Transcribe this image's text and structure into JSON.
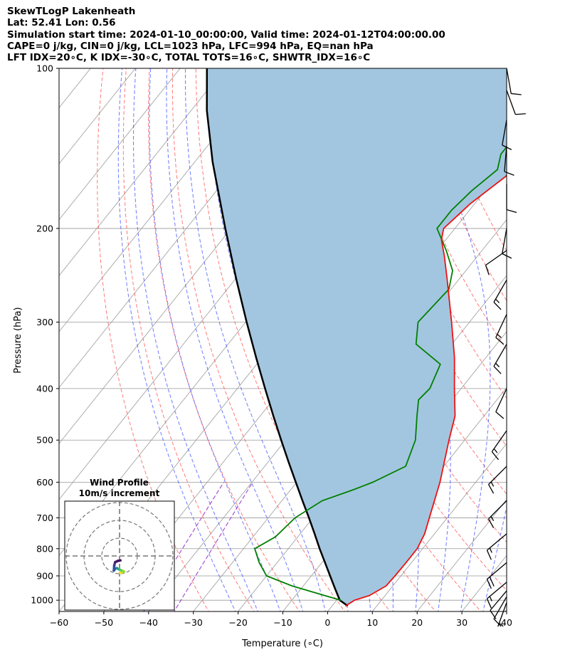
{
  "header": {
    "line1": "SkewTLogP Lakenheath",
    "line2": "Lat: 52.41   Lon: 0.56",
    "line3": "Simulation start time: 2024-01-10_00:00:00, Valid time: 2024-01-12T04:00:00.00",
    "line4": "CAPE=0 j/kg, CIN=0 j/kg, LCL=1023 hPa, LFC=994 hPa, EQ=nan hPa",
    "line5": "LFT IDX=20∘C, K IDX=-30∘C, TOTAL TOTS=16∘C, SHWTR_IDX=16∘C"
  },
  "axes": {
    "xlabel": "Temperature (∘C)",
    "ylabel": "Pressure (hPa)"
  },
  "hodograph": {
    "title": "Wind Profile",
    "subtitle": "10m/s increment"
  },
  "chart_data": {
    "type": "skewt-logp",
    "xlim": [
      -60,
      40
    ],
    "ylim_hpa": [
      1050,
      100
    ],
    "log_pressure_axis": true,
    "grid": true,
    "x_ticks": [
      -60,
      -50,
      -40,
      -30,
      -20,
      -10,
      0,
      10,
      20,
      30,
      40
    ],
    "y_ticks": [
      100,
      200,
      300,
      400,
      500,
      600,
      700,
      800,
      900,
      1000
    ],
    "colors": {
      "temperature": "#ee1111",
      "dewpoint": "#008000",
      "parcel": "#000000",
      "shading": "#a3c6e0",
      "dry_adiabat": "#ff4040",
      "moist_adiabat": "#3040ff",
      "mixing_ratio": "#9933cc",
      "isotherm": "#999999"
    },
    "temperature_profile": [
      {
        "p": 1025,
        "t": 3.0
      },
      {
        "p": 1000,
        "t": 4.0
      },
      {
        "p": 980,
        "t": 6.5
      },
      {
        "p": 940,
        "t": 8.5
      },
      {
        "p": 900,
        "t": 8.7
      },
      {
        "p": 850,
        "t": 8.8
      },
      {
        "p": 800,
        "t": 8.8
      },
      {
        "p": 750,
        "t": 7.8
      },
      {
        "p": 700,
        "t": 6.0
      },
      {
        "p": 600,
        "t": 2.0
      },
      {
        "p": 500,
        "t": -3.5
      },
      {
        "p": 450,
        "t": -6.5
      },
      {
        "p": 400,
        "t": -11.5
      },
      {
        "p": 350,
        "t": -17.0
      },
      {
        "p": 300,
        "t": -24.0
      },
      {
        "p": 250,
        "t": -32.5
      },
      {
        "p": 225,
        "t": -37.5
      },
      {
        "p": 210,
        "t": -41.0
      },
      {
        "p": 200,
        "t": -42.5
      },
      {
        "p": 180,
        "t": -41.0
      },
      {
        "p": 160,
        "t": -38.0
      },
      {
        "p": 150,
        "t": -37.0
      },
      {
        "p": 140,
        "t": -36.0
      },
      {
        "p": 130,
        "t": -35.5
      },
      {
        "p": 120,
        "t": -34.5
      },
      {
        "p": 110,
        "t": -34.0
      },
      {
        "p": 100,
        "t": -33.0
      }
    ],
    "dewpoint_profile": [
      {
        "p": 1000,
        "t": 1.0
      },
      {
        "p": 980,
        "t": -3.5
      },
      {
        "p": 940,
        "t": -12.5
      },
      {
        "p": 900,
        "t": -20.0
      },
      {
        "p": 850,
        "t": -24.0
      },
      {
        "p": 800,
        "t": -27.5
      },
      {
        "p": 760,
        "t": -25.0
      },
      {
        "p": 700,
        "t": -24.0
      },
      {
        "p": 650,
        "t": -21.0
      },
      {
        "p": 620,
        "t": -16.0
      },
      {
        "p": 600,
        "t": -13.0
      },
      {
        "p": 560,
        "t": -8.5
      },
      {
        "p": 500,
        "t": -11.0
      },
      {
        "p": 450,
        "t": -15.0
      },
      {
        "p": 420,
        "t": -17.5
      },
      {
        "p": 400,
        "t": -17.0
      },
      {
        "p": 360,
        "t": -19.0
      },
      {
        "p": 330,
        "t": -28.0
      },
      {
        "p": 300,
        "t": -31.5
      },
      {
        "p": 260,
        "t": -30.5
      },
      {
        "p": 240,
        "t": -33.0
      },
      {
        "p": 220,
        "t": -38.0
      },
      {
        "p": 200,
        "t": -44.0
      },
      {
        "p": 185,
        "t": -44.0
      },
      {
        "p": 170,
        "t": -43.0
      },
      {
        "p": 155,
        "t": -41.0
      },
      {
        "p": 145,
        "t": -43.0
      },
      {
        "p": 135,
        "t": -43.0
      },
      {
        "p": 120,
        "t": -43.0
      },
      {
        "p": 110,
        "t": -43.0
      },
      {
        "p": 100,
        "t": -43.0
      }
    ],
    "parcel_profile": [
      {
        "p": 1025,
        "t": 3.5
      },
      {
        "p": 1000,
        "t": 0.7
      },
      {
        "p": 950,
        "t": -2.5
      },
      {
        "p": 900,
        "t": -5.8
      },
      {
        "p": 850,
        "t": -9.3
      },
      {
        "p": 800,
        "t": -13.0
      },
      {
        "p": 750,
        "t": -16.8
      },
      {
        "p": 700,
        "t": -20.9
      },
      {
        "p": 650,
        "t": -25.4
      },
      {
        "p": 600,
        "t": -30.2
      },
      {
        "p": 550,
        "t": -35.4
      },
      {
        "p": 500,
        "t": -41.0
      },
      {
        "p": 450,
        "t": -47.1
      },
      {
        "p": 400,
        "t": -53.8
      },
      {
        "p": 350,
        "t": -61.3
      },
      {
        "p": 300,
        "t": -69.8
      },
      {
        "p": 250,
        "t": -79.6
      },
      {
        "p": 200,
        "t": -91.3
      },
      {
        "p": 150,
        "t": -106.0
      },
      {
        "p": 120,
        "t": -116.5
      },
      {
        "p": 100,
        "t": -124.0
      }
    ],
    "wind_barbs": [
      {
        "p": 1010,
        "speed_kt": 5,
        "dir_deg": 200
      },
      {
        "p": 985,
        "speed_kt": 10,
        "dir_deg": 210
      },
      {
        "p": 960,
        "speed_kt": 10,
        "dir_deg": 220
      },
      {
        "p": 925,
        "speed_kt": 15,
        "dir_deg": 230
      },
      {
        "p": 850,
        "speed_kt": 20,
        "dir_deg": 230
      },
      {
        "p": 750,
        "speed_kt": 15,
        "dir_deg": 230
      },
      {
        "p": 650,
        "speed_kt": 15,
        "dir_deg": 225
      },
      {
        "p": 560,
        "speed_kt": 15,
        "dir_deg": 225
      },
      {
        "p": 480,
        "speed_kt": 15,
        "dir_deg": 215
      },
      {
        "p": 400,
        "speed_kt": 10,
        "dir_deg": 205
      },
      {
        "p": 330,
        "speed_kt": 15,
        "dir_deg": 210
      },
      {
        "p": 290,
        "speed_kt": 15,
        "dir_deg": 205
      },
      {
        "p": 250,
        "speed_kt": 15,
        "dir_deg": 210
      },
      {
        "p": 220,
        "speed_kt": 10,
        "dir_deg": 235
      },
      {
        "p": 200,
        "speed_kt": 10,
        "dir_deg": 190
      },
      {
        "p": 165,
        "speed_kt": 10,
        "dir_deg": 180
      },
      {
        "p": 140,
        "speed_kt": 10,
        "dir_deg": 185
      },
      {
        "p": 125,
        "speed_kt": 10,
        "dir_deg": 190
      },
      {
        "p": 110,
        "speed_kt": 10,
        "dir_deg": 160
      },
      {
        "p": 100,
        "speed_kt": 10,
        "dir_deg": 170
      }
    ],
    "hodograph": {
      "rings_ms": [
        10,
        20,
        30
      ],
      "points_ms": [
        {
          "u": 0.2,
          "v": -9.5
        },
        {
          "u": 1.5,
          "v": -9.2
        },
        {
          "u": 2.5,
          "v": -8.8
        },
        {
          "u": 0.8,
          "v": -8.0
        },
        {
          "u": -0.5,
          "v": -7.5
        },
        {
          "u": -1.5,
          "v": -6.8
        },
        {
          "u": -2.5,
          "v": -7.2
        },
        {
          "u": -3.2,
          "v": -8.2
        },
        {
          "u": -3.0,
          "v": -5.5
        },
        {
          "u": -2.5,
          "v": -3.5
        },
        {
          "u": -1.0,
          "v": -2.8
        },
        {
          "u": 0.5,
          "v": -2.5
        }
      ]
    }
  }
}
